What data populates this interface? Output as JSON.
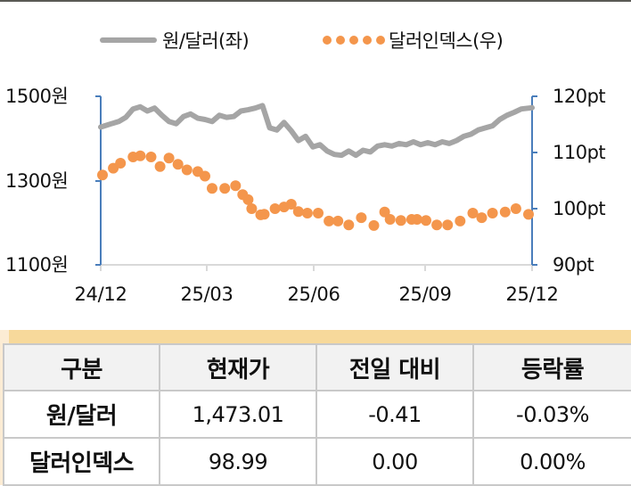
{
  "legend": {
    "series1": "원/달러(좌)",
    "series2": "달러인덱스(우)"
  },
  "axes": {
    "left_ticks": [
      "1500원",
      "1300원",
      "1100원"
    ],
    "right_ticks": [
      "120pt",
      "110pt",
      "100pt",
      "90pt"
    ],
    "x_ticks": [
      "24/12",
      "25/03",
      "25/06",
      "25/09",
      "25/12"
    ]
  },
  "colors": {
    "usdkrw": "#a5a5a5",
    "dxy": "#f4964c",
    "axis": "#4a7ebb",
    "grid_baseline": "#d9d9d9",
    "table_band": "#f7d99b",
    "table_header_bg": "#f2f2f2"
  },
  "table": {
    "headers": [
      "구분",
      "현재가",
      "전일 대비",
      "등락률"
    ],
    "rows": [
      {
        "name": "원/달러",
        "price": "1,473.01",
        "change": "-0.41",
        "pct": "-0.03%"
      },
      {
        "name": "달러인덱스",
        "price": "98.99",
        "change": "0.00",
        "pct": "0.00%"
      }
    ]
  },
  "chart_data": {
    "type": "line",
    "title": "",
    "xlabel": "",
    "ylabel": "원/달러",
    "y2label": "달러인덱스",
    "ylim": [
      1100,
      1500
    ],
    "y2lim": [
      90,
      120
    ],
    "x_range": [
      "24/12",
      "25/12"
    ],
    "categories": [
      "24/12",
      "25/03",
      "25/06",
      "25/09",
      "25/12"
    ],
    "legend_position": "top",
    "grid": false,
    "series": [
      {
        "name": "원/달러(좌)",
        "axis": "left",
        "style": "line",
        "x": [
          0.0,
          0.3,
          0.5,
          0.7,
          0.9,
          1.1,
          1.3,
          1.5,
          1.7,
          1.9,
          2.1,
          2.3,
          2.5,
          2.7,
          2.9,
          3.1,
          3.3,
          3.5,
          3.7,
          3.9,
          4.1,
          4.3,
          4.5,
          4.7,
          4.9,
          5.1,
          5.3,
          5.5,
          5.7,
          5.9,
          6.1,
          6.3,
          6.5,
          6.7,
          6.9,
          7.1,
          7.3,
          7.5,
          7.7,
          7.9,
          8.1,
          8.3,
          8.5,
          8.7,
          8.9,
          9.1,
          9.3,
          9.5,
          9.7,
          9.9,
          10.1,
          10.3,
          10.5,
          10.7,
          10.9,
          11.1,
          11.3,
          11.5,
          11.7,
          12.0
        ],
        "values": [
          1427,
          1435,
          1440,
          1450,
          1470,
          1475,
          1465,
          1472,
          1455,
          1440,
          1435,
          1452,
          1458,
          1448,
          1445,
          1440,
          1455,
          1450,
          1452,
          1465,
          1468,
          1472,
          1478,
          1425,
          1420,
          1438,
          1418,
          1395,
          1405,
          1380,
          1385,
          1370,
          1362,
          1360,
          1370,
          1360,
          1372,
          1368,
          1382,
          1385,
          1382,
          1388,
          1385,
          1392,
          1385,
          1390,
          1385,
          1392,
          1388,
          1395,
          1405,
          1410,
          1420,
          1425,
          1430,
          1445,
          1455,
          1462,
          1470,
          1473
        ]
      },
      {
        "name": "달러인덱스(우)",
        "axis": "right",
        "style": "dots",
        "x": [
          0.05,
          0.35,
          0.55,
          0.9,
          1.1,
          1.4,
          1.65,
          1.9,
          2.15,
          2.4,
          2.7,
          2.9,
          3.1,
          3.45,
          3.75,
          3.95,
          4.1,
          4.2,
          4.45,
          4.55,
          4.85,
          5.1,
          5.3,
          5.5,
          5.75,
          6.05,
          6.35,
          6.6,
          6.9,
          7.25,
          7.6,
          7.9,
          8.05,
          8.35,
          8.65,
          8.8,
          9.05,
          9.35,
          9.65,
          10.0,
          10.35,
          10.6,
          10.9,
          11.25,
          11.55,
          11.9
        ],
        "values": [
          106.0,
          107.2,
          108.1,
          109.2,
          109.4,
          109.2,
          107.5,
          109.0,
          107.9,
          106.9,
          106.6,
          105.8,
          103.6,
          103.6,
          104.1,
          102.5,
          101.6,
          100.0,
          98.9,
          99.0,
          100.0,
          100.3,
          100.8,
          99.5,
          99.2,
          99.2,
          97.8,
          97.8,
          97.1,
          98.4,
          97.0,
          99.4,
          98.1,
          97.9,
          98.1,
          98.1,
          97.9,
          97.1,
          97.1,
          97.8,
          99.2,
          98.4,
          99.2,
          99.4,
          100.0,
          98.99
        ]
      }
    ]
  }
}
